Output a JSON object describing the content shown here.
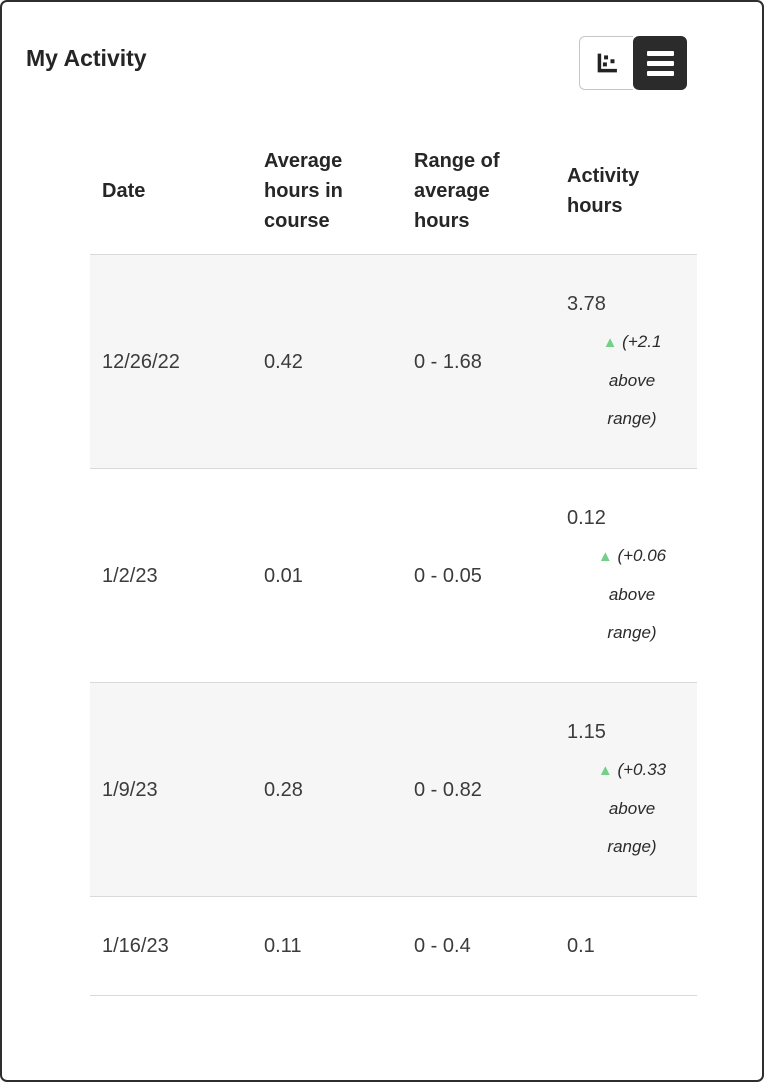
{
  "page": {
    "title": "My Activity"
  },
  "view_toggle": {
    "chart_button": {
      "icon": "scatter-chart-icon",
      "active": false
    },
    "list_button": {
      "icon": "list-icon",
      "active": true
    }
  },
  "table": {
    "columns": [
      "Date",
      "Average hours in course",
      "Range of average hours",
      "Activity hours"
    ],
    "rows": [
      {
        "date": "12/26/22",
        "average_hours": "0.42",
        "range": "0 - 1.68",
        "activity_hours": "3.78",
        "indicator": "(+2.1 above range)"
      },
      {
        "date": "1/2/23",
        "average_hours": "0.01",
        "range": "0 - 0.05",
        "activity_hours": "0.12",
        "indicator": "(+0.06 above range)"
      },
      {
        "date": "1/9/23",
        "average_hours": "0.28",
        "range": "0 - 0.82",
        "activity_hours": "1.15",
        "indicator": "(+0.33 above range)"
      },
      {
        "date": "1/16/23",
        "average_hours": "0.11",
        "range": "0 - 0.4",
        "activity_hours": "0.1",
        "indicator": null
      }
    ]
  },
  "colors": {
    "positive_green": "#72d089",
    "active_button_bg": "#2b2b2b",
    "stripe_bg": "#f6f6f6",
    "divider": "#d9d9d9",
    "frame_border": "#2e2e2e"
  }
}
